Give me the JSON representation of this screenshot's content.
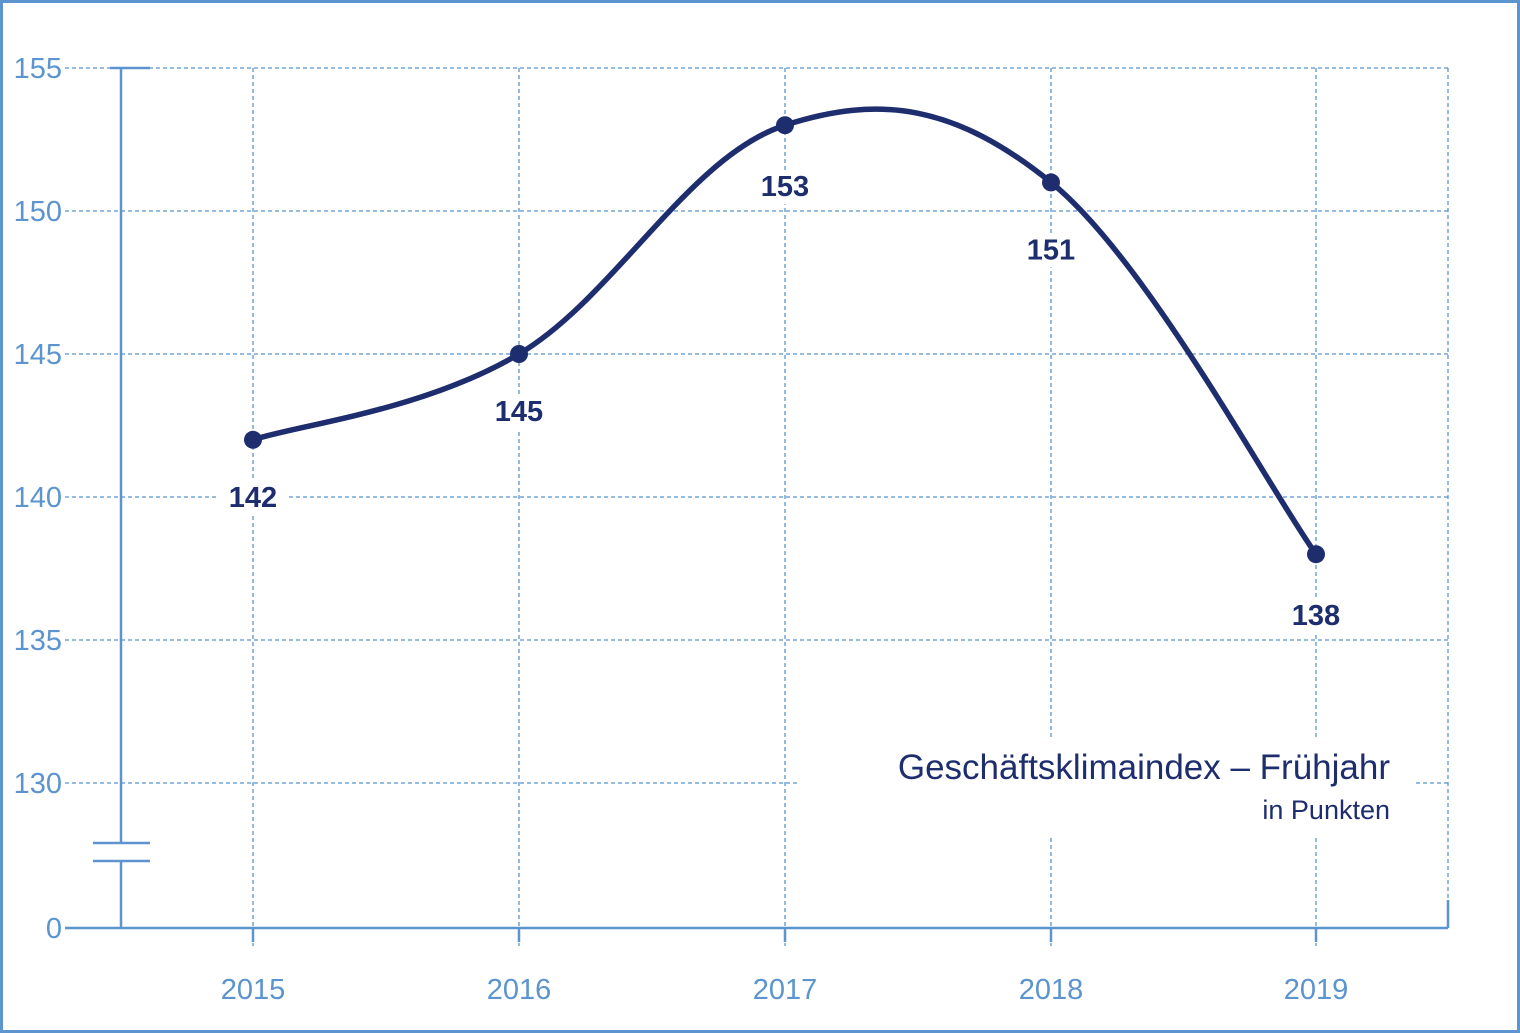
{
  "chart_data": {
    "type": "line",
    "title": "Geschäftsklimaindex – Frühjahr",
    "subtitle": "in Punkten",
    "categories": [
      "2015",
      "2016",
      "2017",
      "2018",
      "2019"
    ],
    "series": [
      {
        "values": [
          142,
          145,
          153,
          151,
          138
        ]
      }
    ],
    "data_labels": [
      "142",
      "145",
      "153",
      "151",
      "138"
    ],
    "y_ticks": [
      "155",
      "150",
      "145",
      "140",
      "135",
      "130",
      "0"
    ],
    "ylim": [
      128,
      155
    ],
    "axis_break": true,
    "grid": true,
    "line_color": "#1d2d6e",
    "axis_color": "#5b94cf"
  }
}
